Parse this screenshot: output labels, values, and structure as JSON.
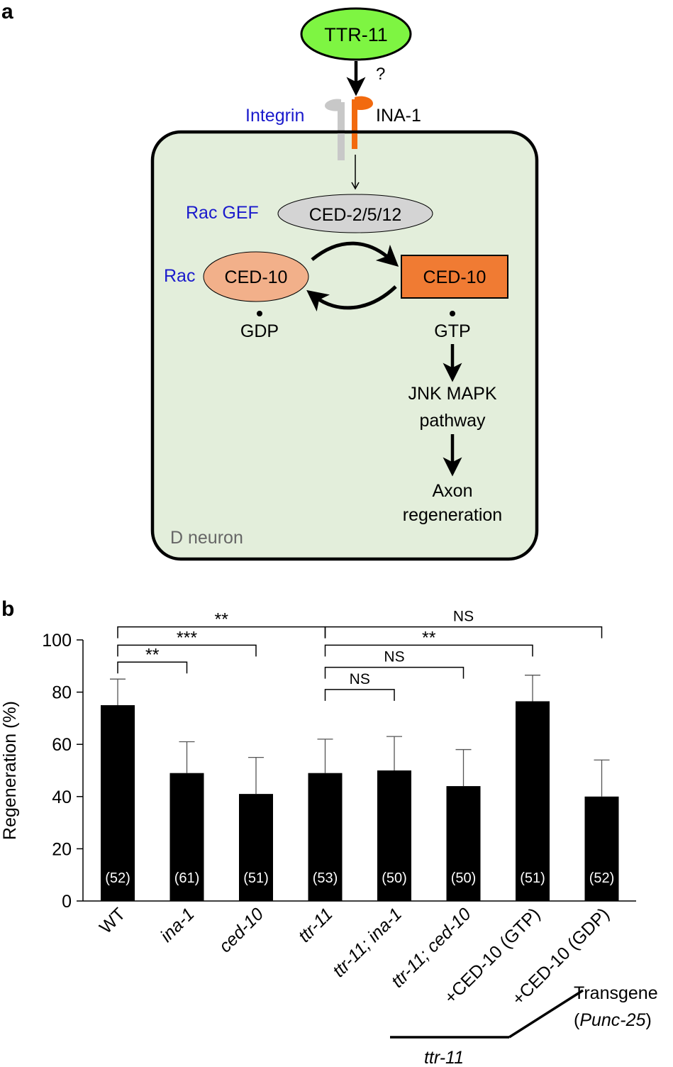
{
  "panel_a": {
    "label": "a",
    "ligand": "TTR-11",
    "question_mark": "?",
    "integrin_label": "Integrin",
    "ina1_label": "INA-1",
    "rac_gef_label": "Rac GEF",
    "gef_name": "CED-2/5/12",
    "rac_label": "Rac",
    "ced10_gdp_name": "CED-10",
    "ced10_gtp_name": "CED-10",
    "gdp_label": "GDP",
    "gtp_label": "GTP",
    "jnk_line1": "JNK MAPK",
    "jnk_line2": "pathway",
    "axon_line1": "Axon",
    "axon_line2": "regeneration",
    "cell_label": "D neuron",
    "colors": {
      "ligand_fill": "#7ef542",
      "cell_fill": "#e3eedb",
      "gef_fill": "#d4d4d4",
      "rac_gdp_fill": "#f2b08a",
      "rac_gtp_fill": "#f07b33",
      "integrin_gray": "#c8c8c8",
      "ina1_orange": "#f26a0f",
      "blue_label": "#1a1acc"
    }
  },
  "panel_b": {
    "label": "b",
    "transgene_line1": "Transgene",
    "transgene_line2_open": "(",
    "transgene_line2_italic": "Punc-25",
    "transgene_line2_close": ")",
    "ttr11_group_label": "ttr-11"
  },
  "chart_data": {
    "type": "bar",
    "ylabel": "Regeneration (%)",
    "ylim": [
      0,
      100
    ],
    "yticks": [
      0,
      20,
      40,
      60,
      80,
      100
    ],
    "categories": [
      "WT",
      "ina-1",
      "ced-10",
      "ttr-11",
      "ttr-11; ina-1",
      "ttr-11; ced-10",
      "+CED-10 (GTP)",
      "+CED-10 (GDP)"
    ],
    "italic": [
      false,
      true,
      true,
      true,
      true,
      true,
      false,
      false
    ],
    "values": [
      75,
      49,
      41,
      49,
      50,
      44,
      76.5,
      40
    ],
    "errors": [
      10,
      12,
      14,
      13,
      13,
      14,
      10,
      14
    ],
    "n_labels": [
      "(52)",
      "(61)",
      "(51)",
      "(53)",
      "(50)",
      "(50)",
      "(51)",
      "(52)"
    ],
    "comparisons": [
      {
        "from": 0,
        "to": 1,
        "label": "**",
        "y": 91.5
      },
      {
        "from": 0,
        "to": 2,
        "label": "***",
        "y": 98
      },
      {
        "from": 0,
        "to": 3,
        "label": "**",
        "y": 105
      },
      {
        "from": 3,
        "to": 4,
        "label": "NS",
        "y": 81
      },
      {
        "from": 3,
        "to": 5,
        "label": "NS",
        "y": 89.5
      },
      {
        "from": 3,
        "to": 6,
        "label": "**",
        "y": 98
      },
      {
        "from": 3,
        "to": 7,
        "label": "NS",
        "y": 105
      }
    ]
  }
}
